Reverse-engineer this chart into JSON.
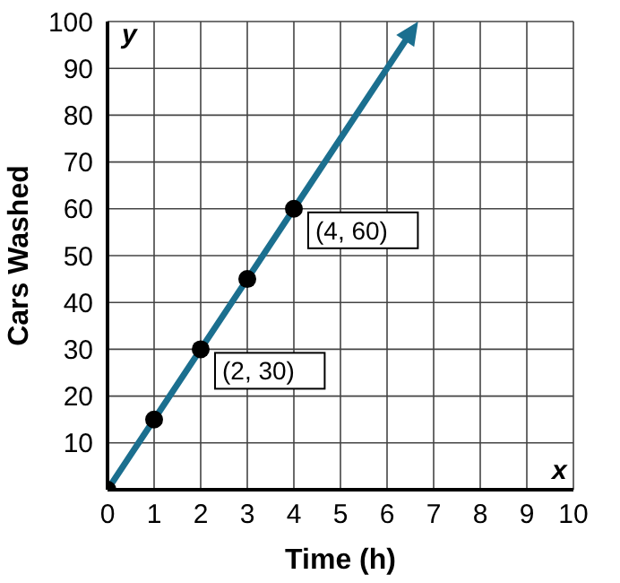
{
  "chart_data": {
    "type": "line",
    "xlabel": "Time (h)",
    "ylabel": "Cars Washed",
    "xlim": [
      0,
      10
    ],
    "xticks": [
      0,
      1,
      2,
      3,
      4,
      5,
      6,
      7,
      8,
      9,
      10
    ],
    "ylim": [
      0,
      100
    ],
    "yticks": [
      {
        "value": 0,
        "label": null
      },
      10,
      20,
      30,
      40,
      50,
      60,
      70,
      80,
      90,
      100
    ],
    "grid": true,
    "marker": "circle",
    "series": [
      {
        "color": "#1b6f8f",
        "x": [
          0,
          1,
          2,
          3,
          4
        ],
        "values": [
          0,
          15,
          30,
          45,
          60
        ]
      }
    ],
    "annotations": [
      {
        "text": "(2, 30)",
        "x": 2,
        "y": 30
      },
      {
        "text": "(4, 60)",
        "x": 4,
        "y": 60
      },
      "y",
      "x"
    ]
  }
}
